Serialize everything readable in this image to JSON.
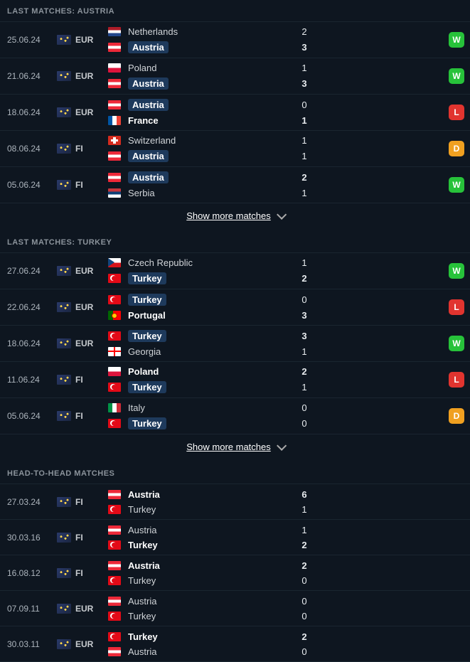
{
  "show_more_label": "Show more matches",
  "sections": [
    {
      "title": "LAST MATCHES: AUSTRIA",
      "show_more": true,
      "matches": [
        {
          "date": "25.06.24",
          "comp": "EUR",
          "home": {
            "name": "Netherlands",
            "flag": "NED",
            "hl": false,
            "bold": false
          },
          "away": {
            "name": "Austria",
            "flag": "AUT",
            "hl": true,
            "bold": true
          },
          "hs": "2",
          "as": "3",
          "hsb": false,
          "asb": true,
          "result": "W"
        },
        {
          "date": "21.06.24",
          "comp": "EUR",
          "home": {
            "name": "Poland",
            "flag": "POL",
            "hl": false,
            "bold": false
          },
          "away": {
            "name": "Austria",
            "flag": "AUT",
            "hl": true,
            "bold": true
          },
          "hs": "1",
          "as": "3",
          "hsb": false,
          "asb": true,
          "result": "W"
        },
        {
          "date": "18.06.24",
          "comp": "EUR",
          "home": {
            "name": "Austria",
            "flag": "AUT",
            "hl": true,
            "bold": false
          },
          "away": {
            "name": "France",
            "flag": "FRA",
            "hl": false,
            "bold": true
          },
          "hs": "0",
          "as": "1",
          "hsb": false,
          "asb": true,
          "result": "L"
        },
        {
          "date": "08.06.24",
          "comp": "FI",
          "home": {
            "name": "Switzerland",
            "flag": "SUI",
            "hl": false,
            "bold": false
          },
          "away": {
            "name": "Austria",
            "flag": "AUT",
            "hl": true,
            "bold": false
          },
          "hs": "1",
          "as": "1",
          "hsb": false,
          "asb": false,
          "result": "D"
        },
        {
          "date": "05.06.24",
          "comp": "FI",
          "home": {
            "name": "Austria",
            "flag": "AUT",
            "hl": true,
            "bold": true
          },
          "away": {
            "name": "Serbia",
            "flag": "SRB",
            "hl": false,
            "bold": false
          },
          "hs": "2",
          "as": "1",
          "hsb": true,
          "asb": false,
          "result": "W"
        }
      ]
    },
    {
      "title": "LAST MATCHES: TURKEY",
      "show_more": true,
      "matches": [
        {
          "date": "27.06.24",
          "comp": "EUR",
          "home": {
            "name": "Czech Republic",
            "flag": "CZE",
            "hl": false,
            "bold": false
          },
          "away": {
            "name": "Turkey",
            "flag": "TUR",
            "hl": true,
            "bold": true
          },
          "hs": "1",
          "as": "2",
          "hsb": false,
          "asb": true,
          "result": "W"
        },
        {
          "date": "22.06.24",
          "comp": "EUR",
          "home": {
            "name": "Turkey",
            "flag": "TUR",
            "hl": true,
            "bold": false
          },
          "away": {
            "name": "Portugal",
            "flag": "POR",
            "hl": false,
            "bold": true
          },
          "hs": "0",
          "as": "3",
          "hsb": false,
          "asb": true,
          "result": "L"
        },
        {
          "date": "18.06.24",
          "comp": "EUR",
          "home": {
            "name": "Turkey",
            "flag": "TUR",
            "hl": true,
            "bold": true
          },
          "away": {
            "name": "Georgia",
            "flag": "GEO",
            "hl": false,
            "bold": false
          },
          "hs": "3",
          "as": "1",
          "hsb": true,
          "asb": false,
          "result": "W"
        },
        {
          "date": "11.06.24",
          "comp": "FI",
          "home": {
            "name": "Poland",
            "flag": "POL",
            "hl": false,
            "bold": true
          },
          "away": {
            "name": "Turkey",
            "flag": "TUR",
            "hl": true,
            "bold": false
          },
          "hs": "2",
          "as": "1",
          "hsb": true,
          "asb": false,
          "result": "L"
        },
        {
          "date": "05.06.24",
          "comp": "FI",
          "home": {
            "name": "Italy",
            "flag": "ITA",
            "hl": false,
            "bold": false
          },
          "away": {
            "name": "Turkey",
            "flag": "TUR",
            "hl": true,
            "bold": false
          },
          "hs": "0",
          "as": "0",
          "hsb": false,
          "asb": false,
          "result": "D"
        }
      ]
    },
    {
      "title": "HEAD-TO-HEAD MATCHES",
      "show_more": false,
      "matches": [
        {
          "date": "27.03.24",
          "comp": "FI",
          "home": {
            "name": "Austria",
            "flag": "AUT",
            "hl": false,
            "bold": true
          },
          "away": {
            "name": "Turkey",
            "flag": "TUR",
            "hl": false,
            "bold": false
          },
          "hs": "6",
          "as": "1",
          "hsb": true,
          "asb": false,
          "result": ""
        },
        {
          "date": "30.03.16",
          "comp": "FI",
          "home": {
            "name": "Austria",
            "flag": "AUT",
            "hl": false,
            "bold": false
          },
          "away": {
            "name": "Turkey",
            "flag": "TUR",
            "hl": false,
            "bold": true
          },
          "hs": "1",
          "as": "2",
          "hsb": false,
          "asb": true,
          "result": ""
        },
        {
          "date": "16.08.12",
          "comp": "FI",
          "home": {
            "name": "Austria",
            "flag": "AUT",
            "hl": false,
            "bold": true
          },
          "away": {
            "name": "Turkey",
            "flag": "TUR",
            "hl": false,
            "bold": false
          },
          "hs": "2",
          "as": "0",
          "hsb": true,
          "asb": false,
          "result": ""
        },
        {
          "date": "07.09.11",
          "comp": "EUR",
          "home": {
            "name": "Austria",
            "flag": "AUT",
            "hl": false,
            "bold": false
          },
          "away": {
            "name": "Turkey",
            "flag": "TUR",
            "hl": false,
            "bold": false
          },
          "hs": "0",
          "as": "0",
          "hsb": false,
          "asb": false,
          "result": ""
        },
        {
          "date": "30.03.11",
          "comp": "EUR",
          "home": {
            "name": "Turkey",
            "flag": "TUR",
            "hl": false,
            "bold": true
          },
          "away": {
            "name": "Austria",
            "flag": "AUT",
            "hl": false,
            "bold": false
          },
          "hs": "2",
          "as": "0",
          "hsb": true,
          "asb": false,
          "result": ""
        }
      ]
    }
  ]
}
